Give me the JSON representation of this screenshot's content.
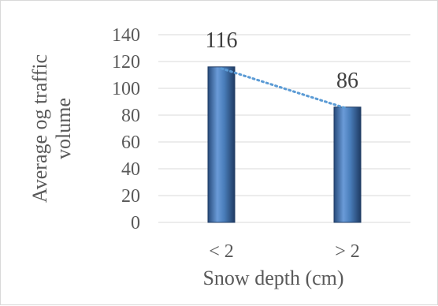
{
  "chart_data": {
    "type": "bar",
    "categories": [
      "< 2",
      "> 2"
    ],
    "values": [
      116,
      86
    ],
    "data_labels": [
      "116",
      "86"
    ],
    "xlabel": "Snow depth (cm)",
    "ylabel": "Average og traffic volume",
    "ylabel_lines": [
      "Average og traffic",
      "volume"
    ],
    "ylim": [
      0,
      140
    ],
    "yticks": [
      "0",
      "20",
      "40",
      "60",
      "80",
      "100",
      "120",
      "140"
    ],
    "grid": true,
    "trendline": "linear-dotted",
    "bar_color": "#4a7ebb",
    "trendline_color": "#5b9bd5"
  }
}
